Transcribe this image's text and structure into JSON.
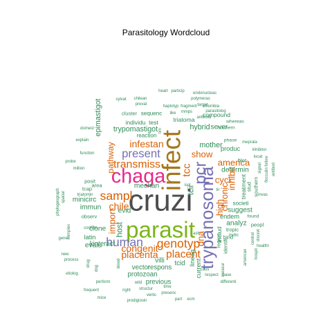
{
  "chart_data": {
    "type": "wordcloud",
    "title": "Parasitology  Wordcloud",
    "color_groups": [
      "#4d4d4d",
      "#2e8b57",
      "#7cb518",
      "#7570b3",
      "#d95f02",
      "#e7298a",
      "#a6761d",
      "#1b9e77"
    ],
    "words": [
      {
        "text": "cruzi",
        "freq": 100,
        "group": 0
      },
      {
        "text": "infect",
        "freq": 80,
        "group": 6
      },
      {
        "text": "parasit",
        "freq": 70,
        "group": 2
      },
      {
        "text": "chaga",
        "freq": 58,
        "group": 5
      },
      {
        "text": "trypanosoma",
        "freq": 50,
        "group": 3
      },
      {
        "text": "pcr",
        "freq": 45,
        "group": 3
      },
      {
        "text": "human",
        "freq": 30,
        "group": 3
      },
      {
        "text": "sampl",
        "freq": 30,
        "group": 4
      },
      {
        "text": "genotyp",
        "freq": 30,
        "group": 4
      },
      {
        "text": "present",
        "freq": 28,
        "group": 3
      },
      {
        "text": "transmiss",
        "freq": 26,
        "group": 4
      },
      {
        "text": "placent",
        "freq": 25,
        "group": 4
      },
      {
        "text": "tcc",
        "freq": 24,
        "group": 4
      },
      {
        "text": "infestan",
        "freq": 22,
        "group": 4
      },
      {
        "text": "chile",
        "freq": 22,
        "group": 4
      },
      {
        "text": "placenta",
        "freq": 22,
        "group": 4
      },
      {
        "text": "congenit",
        "freq": 22,
        "group": 4
      },
      {
        "text": "import",
        "freq": 20,
        "group": 4
      },
      {
        "text": "cycl",
        "freq": 20,
        "group": 4
      },
      {
        "text": "dna",
        "freq": 20,
        "group": 4
      },
      {
        "text": "show",
        "freq": 20,
        "group": 4
      },
      {
        "text": "america",
        "freq": 20,
        "group": 4
      },
      {
        "text": "inhibit",
        "freq": 20,
        "group": 4
      },
      {
        "text": "chronic",
        "freq": 19,
        "group": 4
      },
      {
        "text": "high",
        "freq": 19,
        "group": 4
      },
      {
        "text": "pathway",
        "freq": 18,
        "group": 4
      },
      {
        "text": "host",
        "freq": 17,
        "group": 1
      },
      {
        "text": "tcii",
        "freq": 17,
        "group": 1
      },
      {
        "text": "trypomastigot",
        "freq": 15,
        "group": 1
      },
      {
        "text": "epimastigot",
        "freq": 15,
        "group": 1
      },
      {
        "text": "mother",
        "freq": 15,
        "group": 1
      },
      {
        "text": "hybrid",
        "freq": 15,
        "group": 1
      },
      {
        "text": "sever",
        "freq": 14,
        "group": 1
      },
      {
        "text": "determin",
        "freq": 14,
        "group": 1
      },
      {
        "text": "mechan",
        "freq": 14,
        "group": 1
      },
      {
        "text": "evid",
        "freq": 14,
        "group": 1
      },
      {
        "text": "clone",
        "freq": 14,
        "group": 1
      },
      {
        "text": "immun",
        "freq": 14,
        "group": 1
      },
      {
        "text": "minicirc",
        "freq": 14,
        "group": 1
      },
      {
        "text": "suggest",
        "freq": 14,
        "group": 1
      },
      {
        "text": "analyz",
        "freq": 14,
        "group": 1
      },
      {
        "text": "evalu",
        "freq": 14,
        "group": 1
      },
      {
        "text": "kinteract",
        "freq": 13,
        "group": 1
      },
      {
        "text": "villi",
        "freq": 13,
        "group": 1
      },
      {
        "text": "vector",
        "freq": 13,
        "group": 1
      },
      {
        "text": "respons",
        "freq": 13,
        "group": 1
      },
      {
        "text": "protozoan",
        "freq": 13,
        "group": 1
      },
      {
        "text": "tcid",
        "freq": 13,
        "group": 1
      },
      {
        "text": "previous",
        "freq": 13,
        "group": 1
      },
      {
        "text": "latin",
        "freq": 12,
        "group": 1
      },
      {
        "text": "produc",
        "freq": 12,
        "group": 1
      },
      {
        "text": "endem",
        "freq": 12,
        "group": 1
      },
      {
        "text": "current",
        "freq": 12,
        "group": 1
      },
      {
        "text": "lineag",
        "freq": 12,
        "group": 1
      },
      {
        "text": "triatoma",
        "freq": 11,
        "group": 1
      },
      {
        "text": "individu",
        "freq": 11,
        "group": 1
      },
      {
        "text": "test",
        "freq": 11,
        "group": 1
      },
      {
        "text": "compound",
        "freq": 11,
        "group": 1
      },
      {
        "text": "includ",
        "freq": 11,
        "group": 1
      },
      {
        "text": "treatment",
        "freq": 11,
        "group": 1
      },
      {
        "text": "societi",
        "freq": 10,
        "group": 1
      },
      {
        "text": "sequenc",
        "freq": 10,
        "group": 1
      },
      {
        "text": "reaction",
        "freq": 10,
        "group": 1
      },
      {
        "text": "cluster",
        "freq": 9,
        "group": 1
      },
      {
        "text": "tcap",
        "freq": 9,
        "group": 1
      },
      {
        "text": "area",
        "freq": 9,
        "group": 1
      },
      {
        "text": "posit",
        "freq": 9,
        "group": 1
      },
      {
        "text": "observ",
        "freq": 9,
        "group": 1
      },
      {
        "text": "tropic",
        "freq": 9,
        "group": 1
      },
      {
        "text": "identifi",
        "freq": 9,
        "group": 1
      },
      {
        "text": "region",
        "freq": 9,
        "group": 1
      },
      {
        "text": "bind",
        "freq": 9,
        "group": 1
      },
      {
        "text": "blot",
        "freq": 9,
        "group": 1
      },
      {
        "text": "peopl",
        "freq": 9,
        "group": 1
      },
      {
        "text": "stud",
        "freq": 9,
        "group": 1
      },
      {
        "text": "southern",
        "freq": 9,
        "group": 1
      },
      {
        "text": "indic",
        "freq": 8,
        "group": 1
      },
      {
        "text": "found",
        "freq": 8,
        "group": 1
      },
      {
        "text": "northern",
        "freq": 8,
        "group": 1
      },
      {
        "text": "whereas",
        "freq": 8,
        "group": 1
      },
      {
        "text": "phase",
        "freq": 8,
        "group": 1
      },
      {
        "text": "meprala",
        "freq": 7,
        "group": 1
      },
      {
        "text": "particip",
        "freq": 7,
        "group": 1
      },
      {
        "text": "endonucleas",
        "freq": 7,
        "group": 1
      },
      {
        "text": "polymeras",
        "freq": 7,
        "group": 1
      },
      {
        "text": "target",
        "freq": 7,
        "group": 1
      },
      {
        "text": "chilean",
        "freq": 7,
        "group": 1
      },
      {
        "text": "preval",
        "freq": 7,
        "group": 1
      },
      {
        "text": "haplotyp",
        "freq": 7,
        "group": 1
      },
      {
        "text": "fragment",
        "freq": 7,
        "group": 1
      },
      {
        "text": "colombia",
        "freq": 7,
        "group": 1
      },
      {
        "text": "parasitolog",
        "freq": 7,
        "group": 1
      },
      {
        "text": "mmps",
        "freq": 7,
        "group": 1
      },
      {
        "text": "sylvat",
        "freq": 7,
        "group": 1
      },
      {
        "text": "heart",
        "freq": 7,
        "group": 1
      },
      {
        "text": "antibodi",
        "freq": 7,
        "group": 1
      },
      {
        "text": "domest",
        "freq": 7,
        "group": 1
      },
      {
        "text": "explain",
        "freq": 7,
        "group": 1
      },
      {
        "text": "function",
        "freq": 7,
        "group": 1
      },
      {
        "text": "million",
        "freq": 7,
        "group": 1
      },
      {
        "text": "probe",
        "freq": 7,
        "group": 1
      },
      {
        "text": "triatomin",
        "freq": 7,
        "group": 1
      },
      {
        "text": "confirm",
        "freq": 7,
        "group": 1
      },
      {
        "text": "spatial",
        "freq": 7,
        "group": 1
      },
      {
        "text": "phylogeograph",
        "freq": 7,
        "group": 1
      },
      {
        "text": "genet",
        "freq": 7,
        "group": 1
      },
      {
        "text": "complex",
        "freq": 7,
        "group": 1
      },
      {
        "text": "new",
        "freq": 7,
        "group": 1
      },
      {
        "text": "process",
        "freq": 7,
        "group": 1
      },
      {
        "text": "etiolog",
        "freq": 7,
        "group": 1
      },
      {
        "text": "perform",
        "freq": 7,
        "group": 1
      },
      {
        "text": "wild",
        "freq": 7,
        "group": 1
      },
      {
        "text": "frequent",
        "freq": 7,
        "group": 1
      },
      {
        "text": "right",
        "freq": 7,
        "group": 1
      },
      {
        "text": "structur",
        "freq": 7,
        "group": 1
      },
      {
        "text": "mice",
        "freq": 7,
        "group": 1
      },
      {
        "text": "prodigiosin",
        "freq": 7,
        "group": 1
      },
      {
        "text": "vertic",
        "freq": 7,
        "group": 1
      },
      {
        "text": "presenc",
        "freq": 7,
        "group": 1
      },
      {
        "text": "time",
        "freq": 7,
        "group": 1
      },
      {
        "text": "part",
        "freq": 7,
        "group": 1
      },
      {
        "text": "ecm",
        "freq": 7,
        "group": 1
      },
      {
        "text": "caus",
        "freq": 7,
        "group": 1
      },
      {
        "text": "respect",
        "freq": 7,
        "group": 1
      },
      {
        "text": "base",
        "freq": 7,
        "group": 1
      },
      {
        "text": "differenti",
        "freq": 7,
        "group": 1
      },
      {
        "text": "measur",
        "freq": 7,
        "group": 1
      },
      {
        "text": "healthi",
        "freq": 7,
        "group": 1
      },
      {
        "text": "american",
        "freq": 7,
        "group": 1
      },
      {
        "text": "hospit",
        "freq": 7,
        "group": 1
      },
      {
        "text": "invas",
        "freq": 7,
        "group": 1
      },
      {
        "text": "inhibitor",
        "freq": 7,
        "group": 1
      },
      {
        "text": "locat",
        "freq": 7,
        "group": 1
      },
      {
        "text": "follow",
        "freq": 7,
        "group": 1
      },
      {
        "text": "signal",
        "freq": 7,
        "group": 1
      },
      {
        "text": "flocculin",
        "freq": 7,
        "group": 1
      },
      {
        "text": "antibod",
        "freq": 7,
        "group": 1
      },
      {
        "text": "central",
        "freq": 7,
        "group": 1
      },
      {
        "text": "discret",
        "freq": 7,
        "group": 1
      },
      {
        "text": "tir",
        "freq": 7,
        "group": 1
      },
      {
        "text": "ii",
        "freq": 7,
        "group": 1
      },
      {
        "text": "ash",
        "freq": 7,
        "group": 1
      },
      {
        "text": "isol",
        "freq": 7,
        "group": 1
      },
      {
        "text": "tim",
        "freq": 7,
        "group": 1
      },
      {
        "text": "blood",
        "freq": 7,
        "group": 1
      },
      {
        "text": "drug",
        "freq": 7,
        "group": 1
      },
      {
        "text": "like",
        "freq": 7,
        "group": 1
      },
      {
        "text": "dog",
        "freq": 7,
        "group": 1
      }
    ]
  }
}
